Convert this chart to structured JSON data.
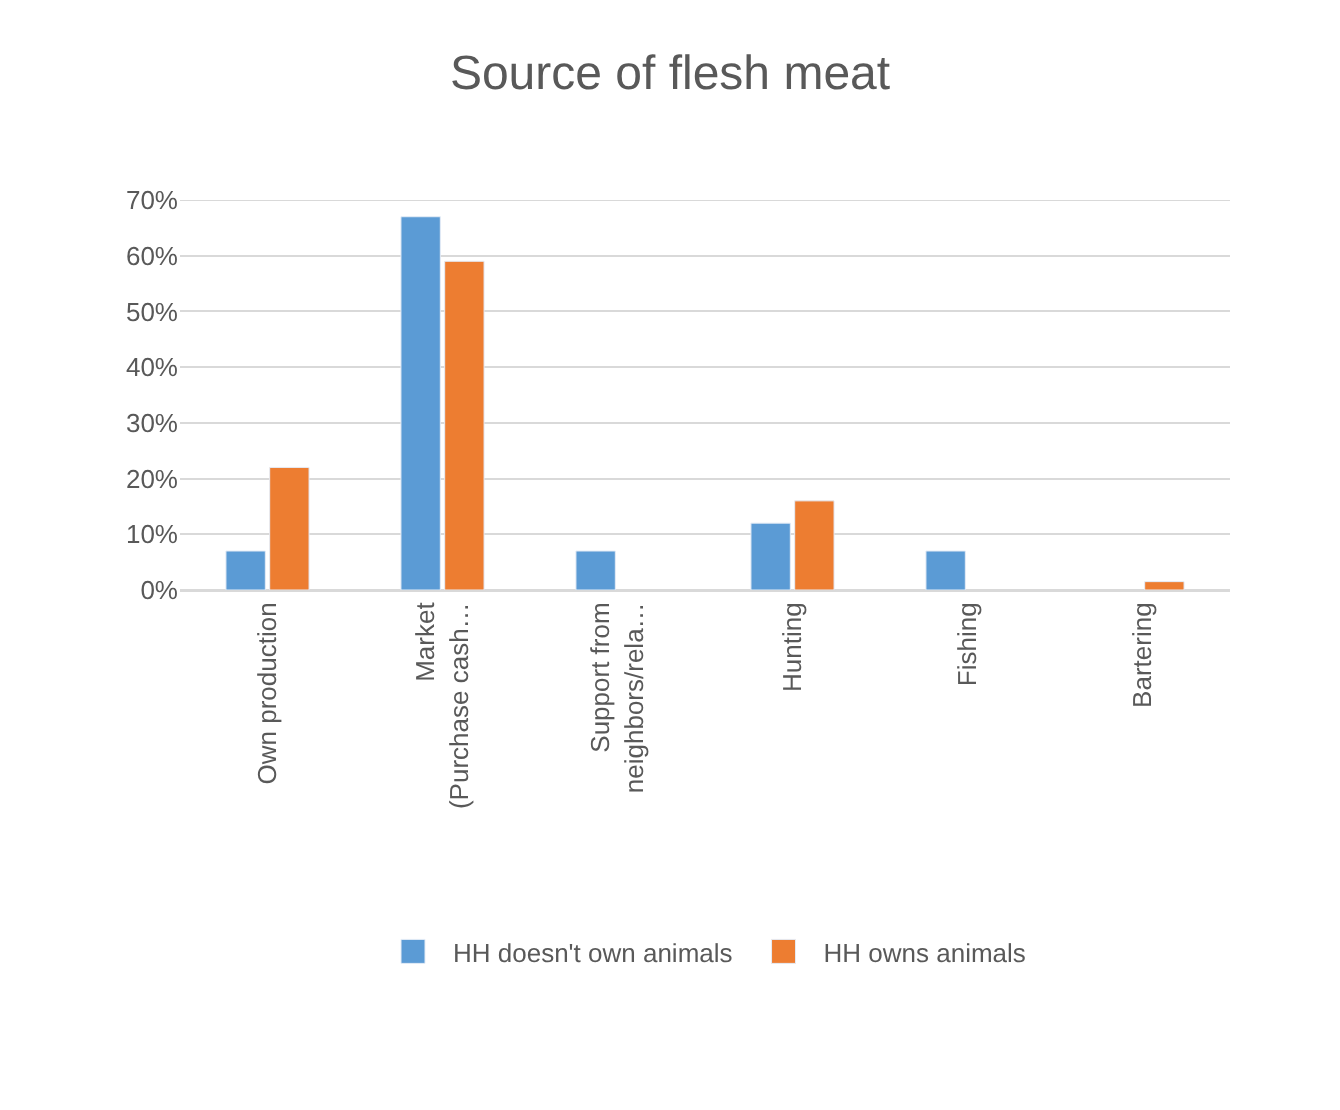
{
  "chart_data": {
    "type": "bar",
    "title": "Source of flesh meat",
    "categories": [
      "Own production",
      "Market\n(Purchase cash…",
      "Support from\nneighbors/rela…",
      "Hunting",
      "Fishing",
      "Bartering"
    ],
    "series": [
      {
        "name": "HH doesn't own animals",
        "color": "#5b9bd5",
        "values": [
          7,
          67,
          7,
          12,
          7,
          null
        ]
      },
      {
        "name": "HH owns animals",
        "color": "#ed7d31",
        "values": [
          22,
          59,
          null,
          16,
          null,
          1.5
        ]
      }
    ],
    "ylim": [
      0,
      70
    ],
    "yticks": [
      {
        "value": 0,
        "label": "0%"
      },
      {
        "value": 10,
        "label": "10%"
      },
      {
        "value": 20,
        "label": "20%"
      },
      {
        "value": 30,
        "label": "30%"
      },
      {
        "value": 40,
        "label": "40%"
      },
      {
        "value": 50,
        "label": "50%"
      },
      {
        "value": 60,
        "label": "60%"
      },
      {
        "value": 70,
        "label": "70%"
      }
    ],
    "grid": "y",
    "legend": "bottom"
  }
}
